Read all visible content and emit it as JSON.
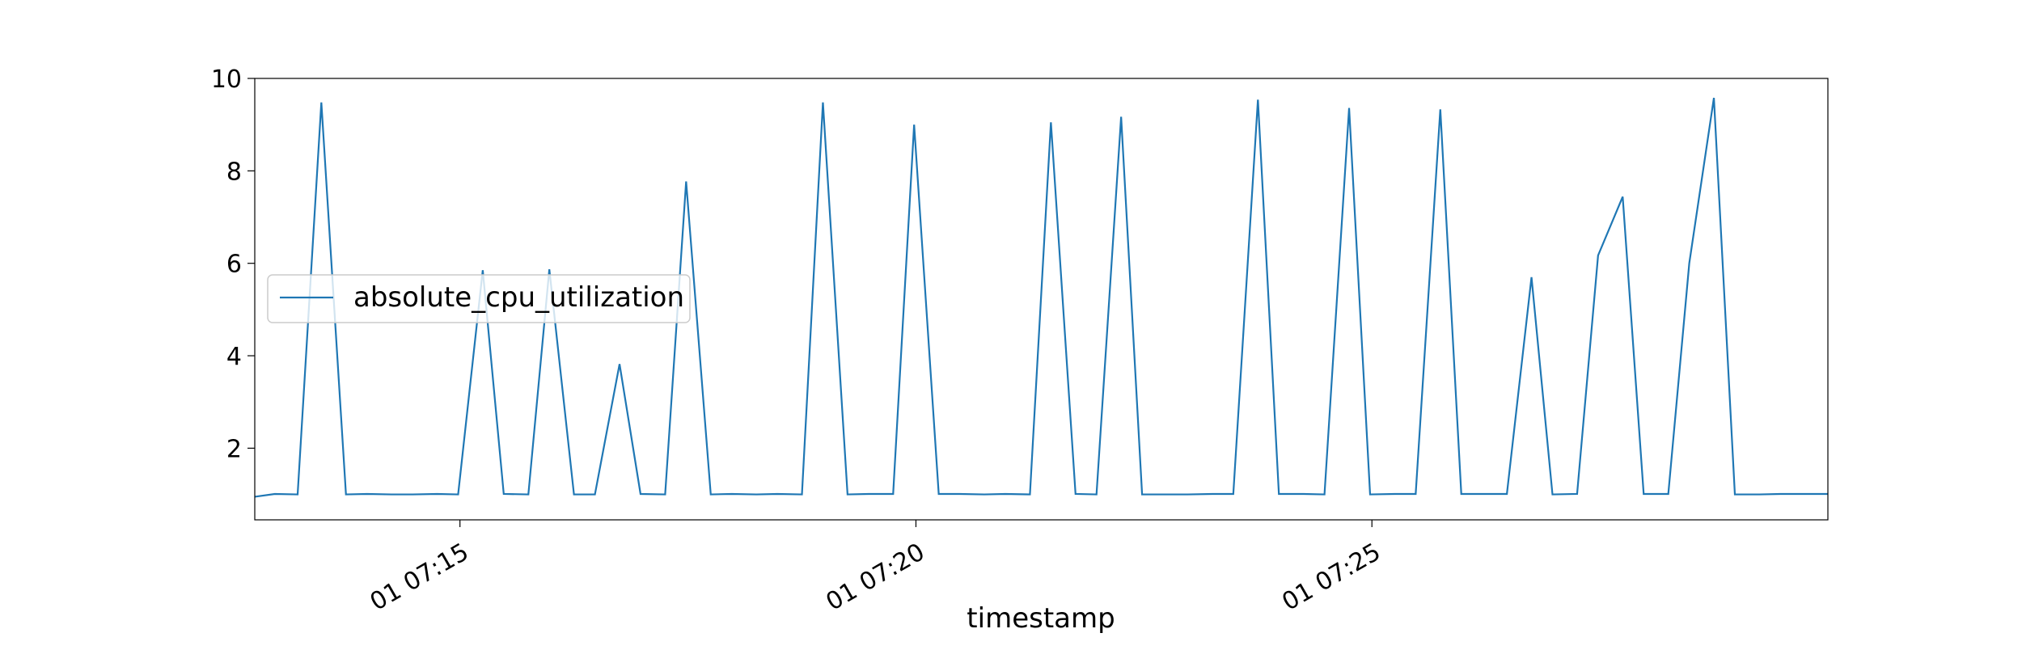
{
  "chart_data": {
    "type": "line",
    "title": "",
    "xlabel": "timestamp",
    "ylabel": "",
    "x_unit": "minutes",
    "xlim": [
      12.75,
      30.0
    ],
    "ylim": [
      0.45,
      10.0
    ],
    "yticks": [
      2,
      4,
      6,
      8,
      10
    ],
    "xticks": [
      {
        "value": 15,
        "label": "01 07:15"
      },
      {
        "value": 20,
        "label": "01 07:20"
      },
      {
        "value": 25,
        "label": "01 07:25"
      }
    ],
    "grid": false,
    "legend": {
      "position": "center-left"
    },
    "colors": {
      "series": "#1f77b4",
      "axes": "#000000",
      "legend_border": "#cccccc"
    },
    "series": [
      {
        "name": "absolute_cpu_utilization",
        "x": [
          12.75,
          12.97,
          13.22,
          13.48,
          13.75,
          13.98,
          14.25,
          14.48,
          14.75,
          14.98,
          15.25,
          15.48,
          15.75,
          15.98,
          16.25,
          16.48,
          16.75,
          16.98,
          17.25,
          17.48,
          17.75,
          17.98,
          18.25,
          18.48,
          18.75,
          18.98,
          19.25,
          19.48,
          19.75,
          19.98,
          20.25,
          20.48,
          20.75,
          20.98,
          21.25,
          21.48,
          21.75,
          21.98,
          22.25,
          22.48,
          22.75,
          22.98,
          23.25,
          23.48,
          23.75,
          23.98,
          24.25,
          24.48,
          24.75,
          24.98,
          25.25,
          25.48,
          25.75,
          25.98,
          26.25,
          26.48,
          26.75,
          26.98,
          27.25,
          27.48,
          27.75,
          27.98,
          28.25,
          28.48,
          28.75,
          28.98,
          29.25,
          29.48,
          29.75,
          30.0
        ],
        "y": [
          0.95,
          1.01,
          1.0,
          9.48,
          1.0,
          1.01,
          1.0,
          1.0,
          1.01,
          1.0,
          5.85,
          1.01,
          1.0,
          5.87,
          1.0,
          1.0,
          3.82,
          1.01,
          1.0,
          7.77,
          1.0,
          1.01,
          1.0,
          1.01,
          1.0,
          9.48,
          1.0,
          1.01,
          1.01,
          9.0,
          1.01,
          1.01,
          1.0,
          1.01,
          1.0,
          9.05,
          1.01,
          1.0,
          9.17,
          1.0,
          1.0,
          1.0,
          1.01,
          1.01,
          9.54,
          1.01,
          1.01,
          1.0,
          9.36,
          1.0,
          1.01,
          1.01,
          9.33,
          1.01,
          1.01,
          1.01,
          5.7,
          1.0,
          1.01,
          6.17,
          7.44,
          1.01,
          1.01,
          6.0,
          9.58,
          1.0,
          1.0,
          1.01,
          1.01,
          1.01
        ]
      }
    ]
  }
}
